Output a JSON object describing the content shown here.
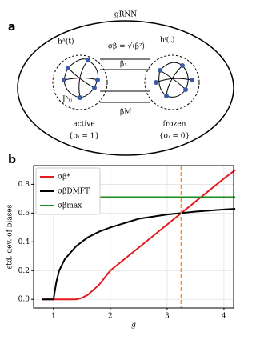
{
  "panels": {
    "a": "a",
    "b": "b"
  },
  "diagram": {
    "title": "gRNN",
    "h_active": "hᴬ(t)",
    "sigma_def": "σβ = √⟨β²⟩",
    "h_frozen": "hᶠ(t)",
    "beta_1": "β₁",
    "beta_M": "βM",
    "coupling": "Jᴬᵢⱼ",
    "active": "active",
    "active_set": "{σᵢ = 1}",
    "frozen": "frozen",
    "frozen_set": "{σᵢ = 0}"
  },
  "chart_data": {
    "type": "line",
    "xlabel": "g",
    "ylabel": "std. dev. of biases",
    "x": [
      0.8,
      1.0,
      1.05,
      1.1,
      1.2,
      1.4,
      1.5,
      1.6,
      1.8,
      2.0,
      2.5,
      3.0,
      3.25,
      3.5,
      4.0,
      4.2
    ],
    "series": [
      {
        "name": "σβ*",
        "color": "#e41a1c",
        "values": [
          0,
          0,
          0,
          0,
          0,
          0,
          0.01,
          0.03,
          0.1,
          0.2,
          0.36,
          0.52,
          0.6,
          0.68,
          0.84,
          0.9
        ]
      },
      {
        "name": "σβDMFT",
        "color": "#000000",
        "values": [
          0,
          0,
          0.12,
          0.2,
          0.28,
          0.37,
          0.4,
          0.43,
          0.47,
          0.5,
          0.56,
          0.59,
          0.6,
          0.61,
          0.625,
          0.63
        ]
      },
      {
        "name": "σβmax",
        "color": "#1a8a1a",
        "values": [
          null,
          null,
          null,
          null,
          null,
          null,
          null,
          null,
          0.71,
          0.71,
          0.71,
          0.71,
          0.71,
          0.71,
          0.71,
          0.71
        ]
      }
    ],
    "vline": {
      "x": 3.25,
      "color": "#ff8c1a"
    },
    "xlim": [
      0.65,
      4.17
    ],
    "xticks": [
      1,
      2,
      3,
      4
    ],
    "ylim": [
      -0.06,
      0.93
    ],
    "yticks": [
      {
        "value": 0,
        "label": "0.0"
      },
      {
        "value": 0.2,
        "label": "0.2"
      },
      {
        "value": 0.4,
        "label": "0.4"
      },
      {
        "value": 0.6,
        "label": "0.6"
      },
      {
        "value": 0.8,
        "label": "0.8"
      }
    ],
    "grid": true,
    "legend": "upper left"
  }
}
